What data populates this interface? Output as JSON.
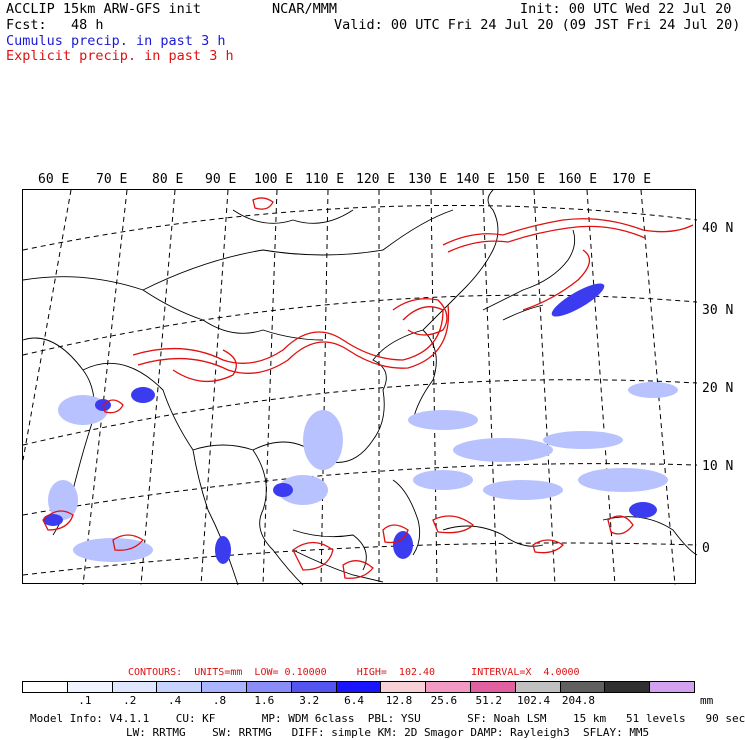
{
  "header": {
    "title_left": "ACCLIP 15km ARW-GFS init",
    "fcst": "Fcst:   48 h",
    "center": "NCAR/MMM",
    "init": "Init: 00 UTC Wed 22 Jul 20",
    "valid": "Valid: 00 UTC Fri 24 Jul 20 (09 JST Fri 24 Jul 20)",
    "cumulus": "Cumulus precip. in past 3 h",
    "explicit": "Explicit precip. in past 3 h"
  },
  "map": {
    "lon_labels": [
      "60 E",
      "70 E",
      "80 E",
      "90 E",
      "100 E",
      "110 E",
      "120 E",
      "130 E",
      "140 E",
      "150 E",
      "160 E",
      "170 E"
    ],
    "lat_labels": [
      "40 N",
      "30 N",
      "20 N",
      "10 N",
      "0"
    ],
    "colors": {
      "coast": "#000000",
      "grid": "#000000",
      "cumulus": "#3b3bf0",
      "cumulus_light": "#b7c2ff",
      "explicit": "#e01010"
    }
  },
  "legend": {
    "contours_label": "CONTOURS:  UNITS=mm  LOW= 0.10000     HIGH=  102.40      INTERVAL=X  4.0000",
    "colorbar": [
      "#ffffff",
      "#f0f4ff",
      "#dfe6ff",
      "#c8d2ff",
      "#aab4ff",
      "#8a8cf8",
      "#5454f0",
      "#1a14ff",
      "#f7d0d8",
      "#f39ac4",
      "#e060a0",
      "#c0c0c0",
      "#606060",
      "#303030",
      "#d4a0f0"
    ],
    "labels": [
      ".1",
      ".2",
      ".4",
      ".8",
      "1.6",
      "3.2",
      "6.4",
      "12.8",
      "25.6",
      "51.2",
      "102.4",
      "204.8"
    ],
    "units": "mm"
  },
  "footer": {
    "line1": "Model Info: V4.1.1    CU: KF       MP: WDM 6class  PBL: YSU       SF: Noah LSM    15 km   51 levels   90 sec",
    "line2": "LW: RRTMG    SW: RRTMG   DIFF: simple KM: 2D Smagor DAMP: Rayleigh3  SFLAY: MM5"
  }
}
